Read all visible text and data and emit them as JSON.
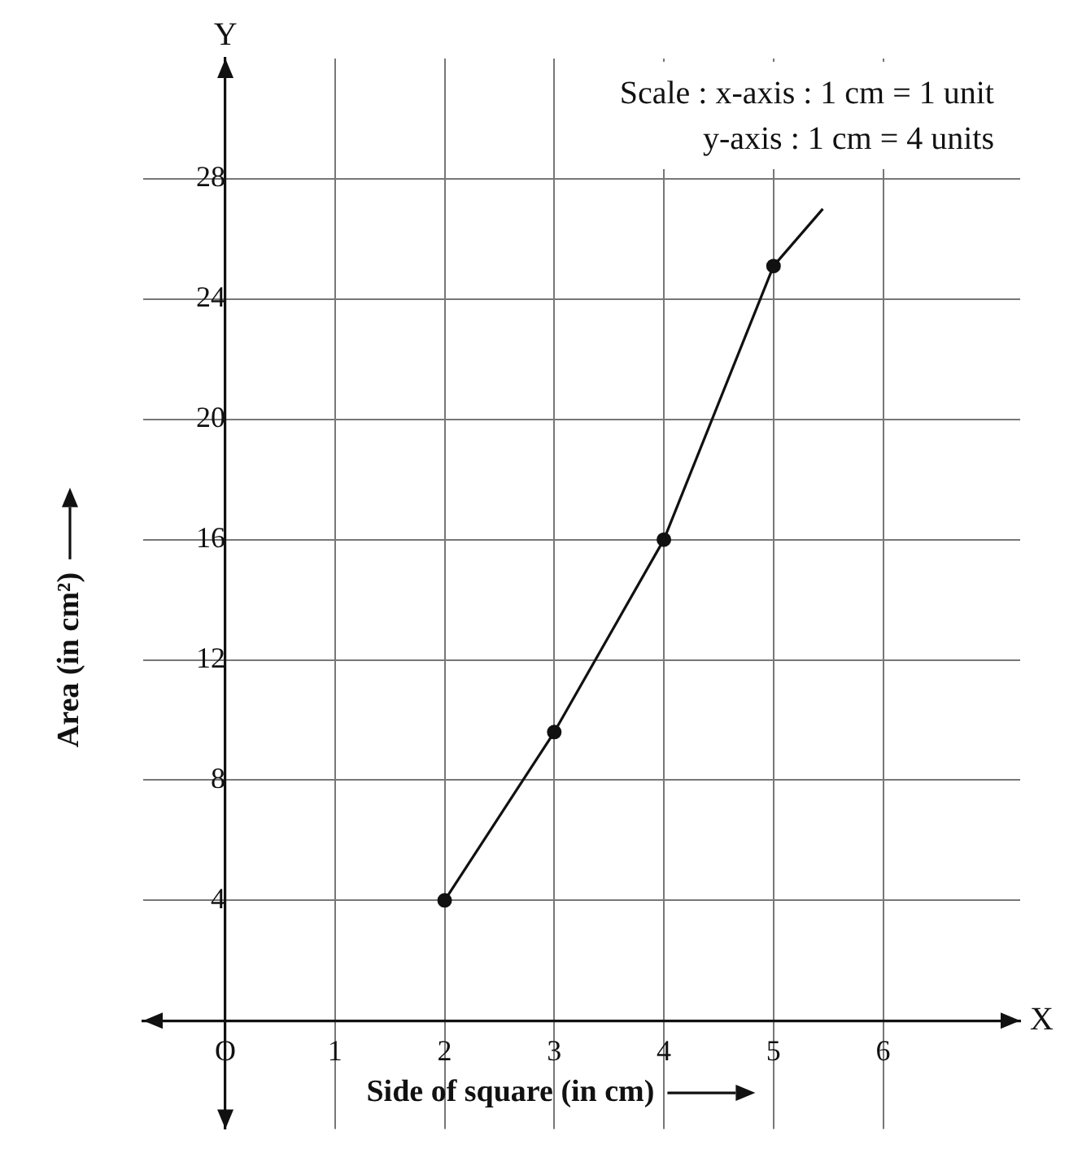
{
  "chart_data": {
    "type": "line",
    "xlabel": "Side of square (in cm)",
    "ylabel": "Area (in cm²)",
    "series": [
      {
        "marker": "none",
        "color": "#111111",
        "x": [
          2,
          3,
          4,
          5,
          5.45
        ],
        "values": [
          4,
          9.6,
          16,
          25.1,
          27
        ]
      },
      {
        "type": "scatter",
        "marker": "circle",
        "color": "#111111",
        "x": [
          2,
          3,
          4,
          5
        ],
        "values": [
          4,
          9.6,
          16,
          25.1
        ]
      }
    ],
    "xlim": [
      -0.75,
      7.25
    ],
    "ylim": [
      -3.6,
      32
    ],
    "xticks": [
      {
        "value": 0,
        "label": "O"
      },
      1,
      2,
      3,
      4,
      5,
      6
    ],
    "yticks": [
      4,
      8,
      12,
      16,
      20,
      24,
      28
    ],
    "grid": true,
    "legend": false,
    "annotations": [
      "Scale : x-axis : 1 cm = 1 unit",
      "y-axis : 1 cm = 4 units",
      "X",
      "Y"
    ]
  }
}
